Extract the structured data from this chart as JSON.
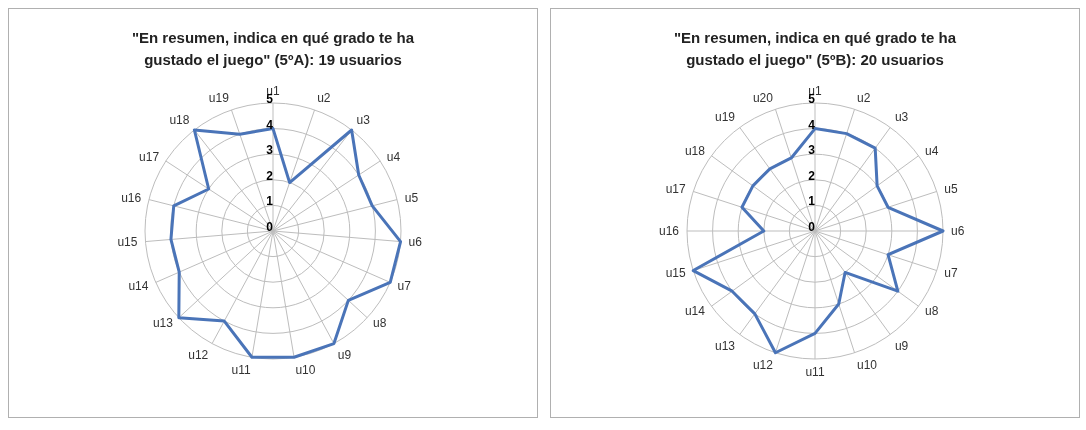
{
  "chart_data": [
    {
      "type": "radar",
      "title": "\"En resumen, indica en qué grado te ha gustado el juego\" (5ºA): 19 usuarios",
      "categories": [
        "u1",
        "u2",
        "u3",
        "u4",
        "u5",
        "u6",
        "u7",
        "u8",
        "u9",
        "u10",
        "u11",
        "u12",
        "u13",
        "u14",
        "u15",
        "u16",
        "u17",
        "u18",
        "u19"
      ],
      "series": [
        {
          "color": "#4a74b8",
          "values": [
            4,
            2,
            5,
            4,
            4,
            5,
            5,
            4,
            5,
            5,
            5,
            4,
            5,
            4,
            4,
            4,
            3,
            5,
            4
          ]
        }
      ],
      "ylim": [
        0,
        5
      ],
      "yticks": [
        0,
        1,
        2,
        3,
        4,
        5
      ],
      "grid": true
    },
    {
      "type": "radar",
      "title": "\"En resumen, indica en qué grado te ha gustado el juego\" (5ºB): 20 usuarios",
      "categories": [
        "u1",
        "u2",
        "u3",
        "u4",
        "u5",
        "u6",
        "u7",
        "u8",
        "u9",
        "u10",
        "u11",
        "u12",
        "u13",
        "u14",
        "u15",
        "u16",
        "u17",
        "u18",
        "u19",
        "u20"
      ],
      "series": [
        {
          "color": "#4a74b8",
          "values": [
            4,
            4,
            4,
            3,
            3,
            5,
            3,
            4,
            2,
            3,
            4,
            5,
            4,
            4,
            5,
            2,
            3,
            3,
            3,
            3
          ]
        }
      ],
      "ylim": [
        0,
        5
      ],
      "yticks": [
        0,
        1,
        2,
        3,
        4,
        5
      ],
      "grid": true
    }
  ]
}
